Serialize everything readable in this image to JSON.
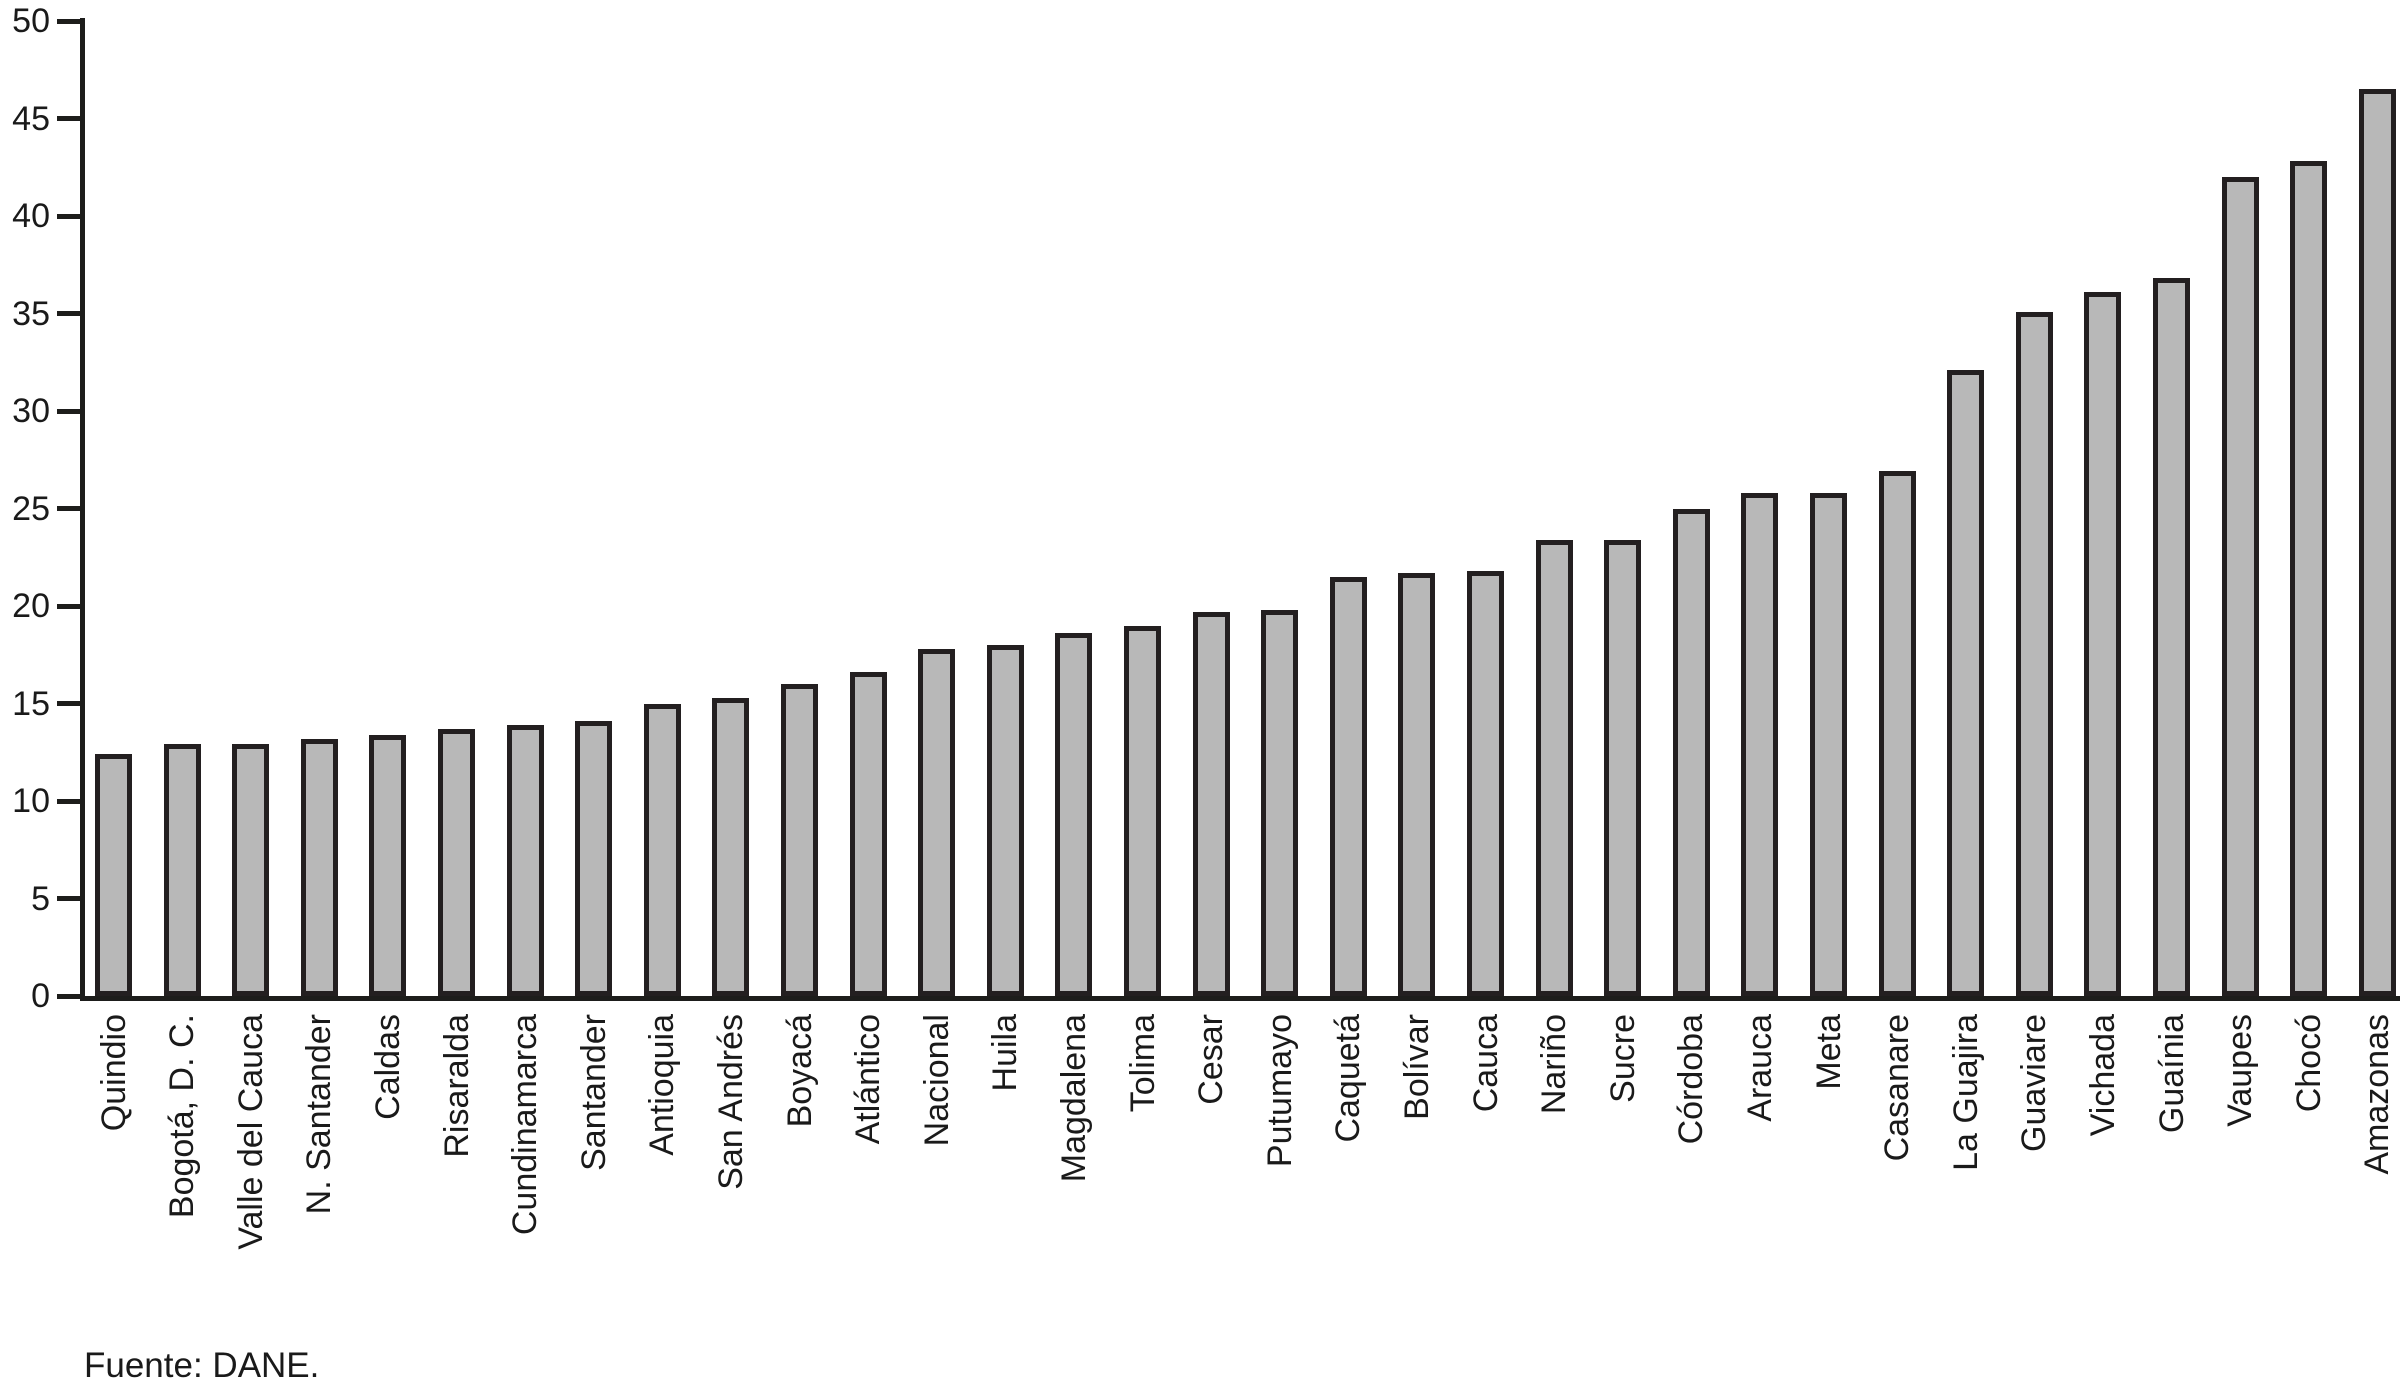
{
  "chart_data": {
    "type": "bar",
    "title": "",
    "xlabel": "",
    "ylabel": "",
    "ylim": [
      0,
      50
    ],
    "yticks": [
      0,
      5,
      10,
      15,
      20,
      25,
      30,
      35,
      40,
      45,
      50
    ],
    "grid": false,
    "legend_position": "none",
    "bar_color": "#b8b8b8",
    "bar_border_color": "#231f20",
    "axis_color": "#1d1d1b",
    "categories": [
      "Quindio",
      "Bogotá, D. C.",
      "Valle del Cauca",
      "N. Santander",
      "Caldas",
      "Risaralda",
      "Cundinamarca",
      "Santander",
      "Antioquia",
      "San Andrés",
      "Boyacá",
      "Atlántico",
      "Nacional",
      "Huila",
      "Magdalena",
      "Tolima",
      "Cesar",
      "Putumayo",
      "Caquetá",
      "Bolívar",
      "Cauca",
      "Nariño",
      "Sucre",
      "Córdoba",
      "Arauca",
      "Meta",
      "Casanare",
      "La Guajira",
      "Guaviare",
      "Vichada",
      "Guaínia",
      "Vaupes",
      "Chocó",
      "Amazonas"
    ],
    "values": [
      12.4,
      12.9,
      12.9,
      13.2,
      13.4,
      13.7,
      13.9,
      14.1,
      15.0,
      15.3,
      16.0,
      16.6,
      17.8,
      18.0,
      18.6,
      19.0,
      19.7,
      19.8,
      21.5,
      21.7,
      21.8,
      23.4,
      23.4,
      25.0,
      25.8,
      25.8,
      26.9,
      32.1,
      35.1,
      36.1,
      36.8,
      42.0,
      42.8,
      46.5
    ]
  },
  "footer": {
    "source": "Fuente: DANE."
  }
}
